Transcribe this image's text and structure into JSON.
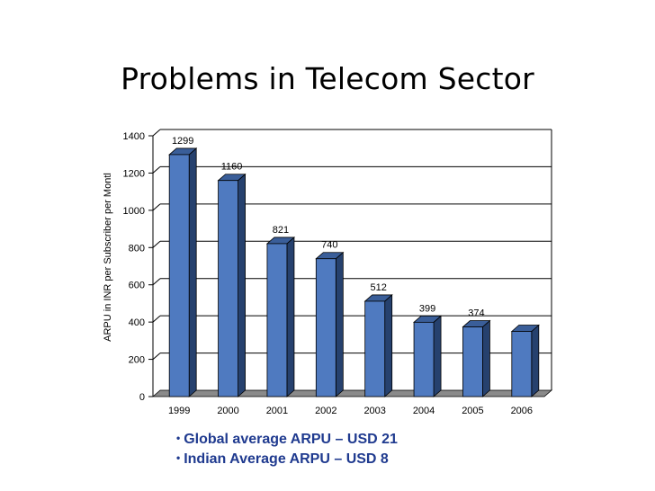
{
  "title": "Problems in Telecom Sector",
  "chart_data": {
    "type": "bar",
    "categories": [
      "1999",
      "2000",
      "2001",
      "2002",
      "2003",
      "2004",
      "2005",
      "2006"
    ],
    "values": [
      1299,
      1160,
      821,
      740,
      512,
      399,
      374,
      350
    ],
    "data_labels": [
      "1299",
      "1160",
      "821",
      "740",
      "512",
      "399",
      "374",
      ""
    ],
    "ylabel": "ARPU in INR per Subscriber per Montl",
    "xlabel": "",
    "ylim": [
      0,
      1400
    ],
    "yticks": [
      0,
      200,
      400,
      600,
      800,
      1000,
      1200,
      1400
    ],
    "grid": true,
    "colors": {
      "bar_front": "#4f7ac0",
      "bar_side": "#26416e",
      "bar_top": "#3a5e99",
      "floor": "#8a8a8a"
    }
  },
  "bullets": [
    "Global average ARPU – USD 21",
    "Indian Average ARPU – USD 8"
  ]
}
